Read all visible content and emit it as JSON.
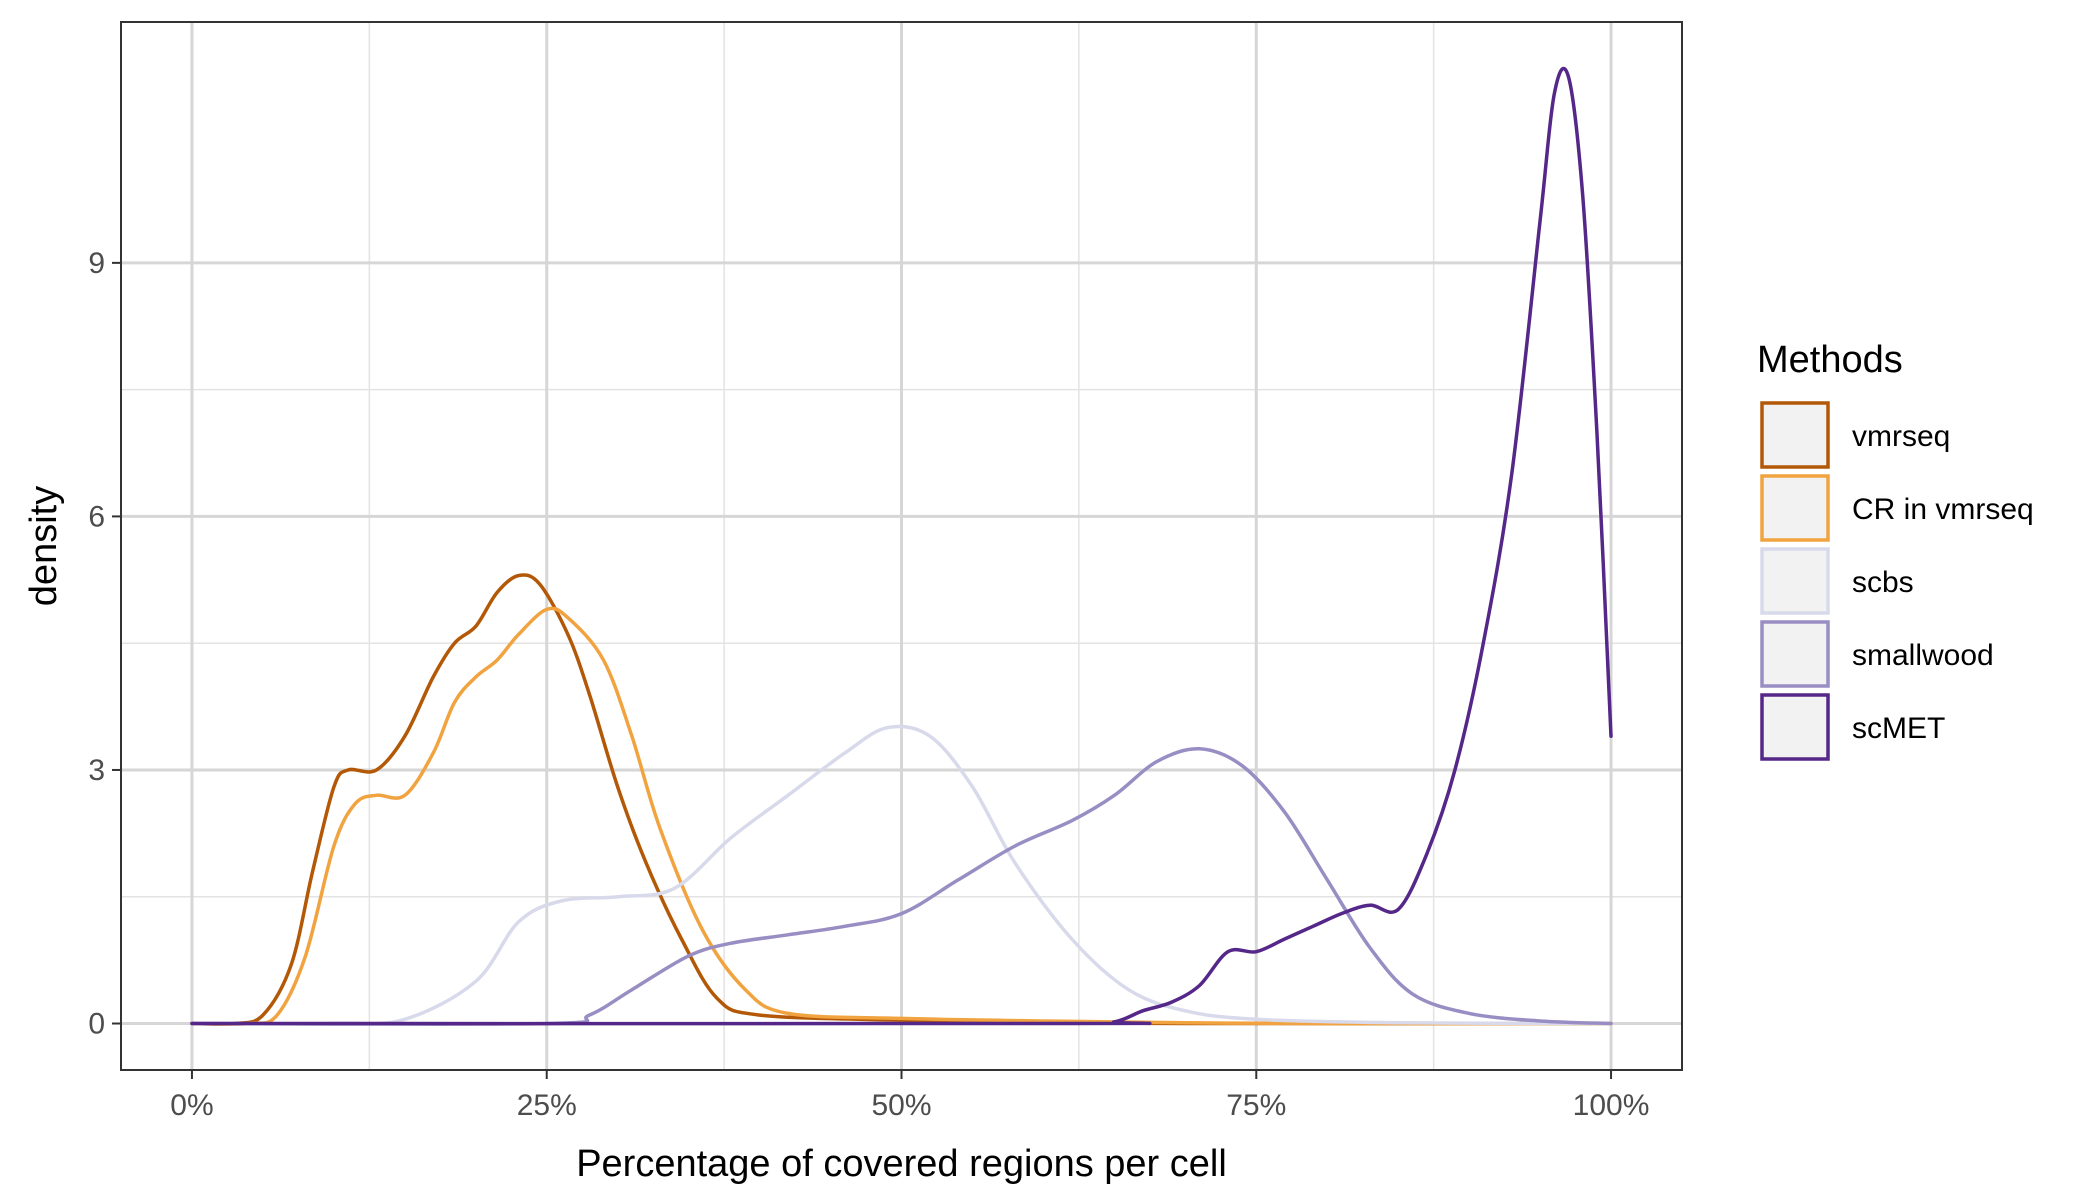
{
  "chart_data": {
    "type": "line",
    "xlabel": "Percentage of covered regions per cell",
    "ylabel": "density",
    "xlim": [
      -0.05,
      1.05
    ],
    "ylim": [
      -0.55,
      11.85
    ],
    "x_ticks": [
      0,
      0.25,
      0.5,
      0.75,
      1.0
    ],
    "x_tick_labels": [
      "0%",
      "25%",
      "50%",
      "75%",
      "100%"
    ],
    "y_ticks": [
      0,
      3,
      6,
      9
    ],
    "y_tick_labels": [
      "0",
      "3",
      "6",
      "9"
    ],
    "grid": true,
    "legend": {
      "title": "Methods",
      "position": "right"
    },
    "series": [
      {
        "name": "vmrseq",
        "color": "#b35806",
        "points": [
          [
            0,
            0
          ],
          [
            0.03,
            0
          ],
          [
            0.05,
            0.1
          ],
          [
            0.07,
            0.7
          ],
          [
            0.085,
            1.8
          ],
          [
            0.1,
            2.8
          ],
          [
            0.11,
            3.0
          ],
          [
            0.13,
            3.0
          ],
          [
            0.15,
            3.4
          ],
          [
            0.17,
            4.1
          ],
          [
            0.185,
            4.5
          ],
          [
            0.2,
            4.7
          ],
          [
            0.215,
            5.1
          ],
          [
            0.23,
            5.3
          ],
          [
            0.245,
            5.2
          ],
          [
            0.265,
            4.6
          ],
          [
            0.28,
            3.9
          ],
          [
            0.3,
            2.8
          ],
          [
            0.32,
            1.9
          ],
          [
            0.345,
            1.0
          ],
          [
            0.37,
            0.3
          ],
          [
            0.4,
            0.1
          ],
          [
            0.5,
            0.04
          ],
          [
            0.6,
            0.02
          ],
          [
            0.7,
            0
          ],
          [
            1.0,
            0
          ]
        ]
      },
      {
        "name": "CR in vmrseq",
        "color": "#f1a340",
        "points": [
          [
            0,
            0
          ],
          [
            0.04,
            0
          ],
          [
            0.06,
            0.1
          ],
          [
            0.08,
            0.8
          ],
          [
            0.1,
            2.1
          ],
          [
            0.115,
            2.6
          ],
          [
            0.13,
            2.7
          ],
          [
            0.15,
            2.7
          ],
          [
            0.17,
            3.2
          ],
          [
            0.185,
            3.8
          ],
          [
            0.2,
            4.1
          ],
          [
            0.215,
            4.3
          ],
          [
            0.23,
            4.6
          ],
          [
            0.25,
            4.9
          ],
          [
            0.265,
            4.8
          ],
          [
            0.29,
            4.3
          ],
          [
            0.31,
            3.4
          ],
          [
            0.33,
            2.3
          ],
          [
            0.36,
            1.1
          ],
          [
            0.39,
            0.4
          ],
          [
            0.42,
            0.12
          ],
          [
            0.5,
            0.06
          ],
          [
            0.6,
            0.03
          ],
          [
            0.7,
            0.01
          ],
          [
            0.8,
            0
          ],
          [
            1.0,
            0
          ]
        ]
      },
      {
        "name": "scbs",
        "color": "#d8daeb",
        "points": [
          [
            0,
            0
          ],
          [
            0.1,
            0
          ],
          [
            0.15,
            0.05
          ],
          [
            0.2,
            0.5
          ],
          [
            0.23,
            1.2
          ],
          [
            0.26,
            1.45
          ],
          [
            0.3,
            1.5
          ],
          [
            0.34,
            1.6
          ],
          [
            0.38,
            2.2
          ],
          [
            0.42,
            2.7
          ],
          [
            0.46,
            3.2
          ],
          [
            0.49,
            3.5
          ],
          [
            0.52,
            3.4
          ],
          [
            0.55,
            2.8
          ],
          [
            0.58,
            1.9
          ],
          [
            0.62,
            1.0
          ],
          [
            0.66,
            0.4
          ],
          [
            0.7,
            0.15
          ],
          [
            0.75,
            0.05
          ],
          [
            0.85,
            0.01
          ],
          [
            1.0,
            0
          ]
        ]
      },
      {
        "name": "smallwood",
        "color": "#998ec3",
        "points": [
          [
            0,
            0
          ],
          [
            0.25,
            0
          ],
          [
            0.28,
            0.1
          ],
          [
            0.31,
            0.4
          ],
          [
            0.35,
            0.8
          ],
          [
            0.38,
            0.95
          ],
          [
            0.42,
            1.05
          ],
          [
            0.46,
            1.15
          ],
          [
            0.5,
            1.3
          ],
          [
            0.54,
            1.7
          ],
          [
            0.58,
            2.1
          ],
          [
            0.62,
            2.4
          ],
          [
            0.65,
            2.7
          ],
          [
            0.68,
            3.1
          ],
          [
            0.71,
            3.25
          ],
          [
            0.74,
            3.05
          ],
          [
            0.77,
            2.5
          ],
          [
            0.8,
            1.7
          ],
          [
            0.83,
            0.9
          ],
          [
            0.86,
            0.35
          ],
          [
            0.9,
            0.12
          ],
          [
            0.95,
            0.03
          ],
          [
            1.0,
            0
          ]
        ]
      },
      {
        "name": "scMET",
        "color": "#542788",
        "points": [
          [
            0,
            0
          ],
          [
            0.62,
            0
          ],
          [
            0.65,
            0.02
          ],
          [
            0.67,
            0.15
          ],
          [
            0.69,
            0.25
          ],
          [
            0.71,
            0.45
          ],
          [
            0.73,
            0.85
          ],
          [
            0.75,
            0.85
          ],
          [
            0.77,
            1.0
          ],
          [
            0.79,
            1.15
          ],
          [
            0.81,
            1.3
          ],
          [
            0.83,
            1.4
          ],
          [
            0.85,
            1.35
          ],
          [
            0.87,
            2.0
          ],
          [
            0.89,
            3.0
          ],
          [
            0.91,
            4.5
          ],
          [
            0.93,
            6.5
          ],
          [
            0.95,
            9.5
          ],
          [
            0.96,
            11.0
          ],
          [
            0.97,
            11.2
          ],
          [
            0.98,
            9.8
          ],
          [
            0.99,
            7.0
          ],
          [
            1.0,
            3.4
          ]
        ]
      }
    ]
  }
}
